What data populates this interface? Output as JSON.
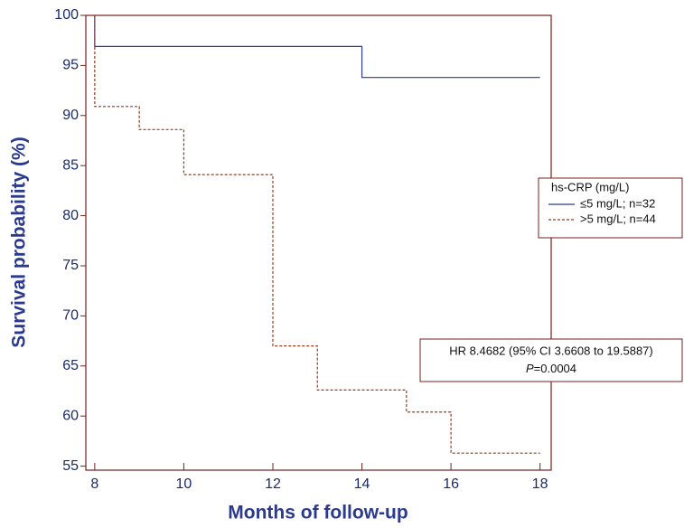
{
  "chart_data": {
    "type": "step-line",
    "x_label": "Months of follow-up",
    "y_label": "Survival probability (%)",
    "xlim": [
      7.8,
      18.25
    ],
    "xticks": [
      8,
      10,
      12,
      14,
      16,
      18
    ],
    "ylim": [
      54.6,
      100
    ],
    "yticks": [
      55,
      60,
      65,
      70,
      75,
      80,
      85,
      90,
      95,
      100
    ],
    "frame_color": "#7a1f1f",
    "legend_title": "hs-CRP (mg/L)",
    "legend_position": "right",
    "series": [
      {
        "name": "≤5 mg/L; n=32",
        "color": "#2b3a9c",
        "dash": false,
        "x": [
          8,
          8,
          14,
          14,
          18
        ],
        "values": [
          100,
          96.9,
          96.9,
          93.8,
          93.8
        ]
      },
      {
        "name": ">5 mg/L; n=44",
        "color": "#9c3a1a",
        "dash": true,
        "x": [
          8,
          8,
          9,
          9,
          10,
          10,
          12,
          12,
          13,
          13,
          15,
          15,
          16,
          16,
          18
        ],
        "values": [
          100,
          90.9,
          90.9,
          88.6,
          88.6,
          84.1,
          84.1,
          67,
          67,
          62.6,
          62.6,
          60.4,
          60.4,
          56.3,
          56.3
        ]
      }
    ],
    "annotation": {
      "text": "HR 8.4682 (95% CI 3.6608 to 19.5887)",
      "p_symbol": "P",
      "p_value": "=0.0004"
    }
  }
}
